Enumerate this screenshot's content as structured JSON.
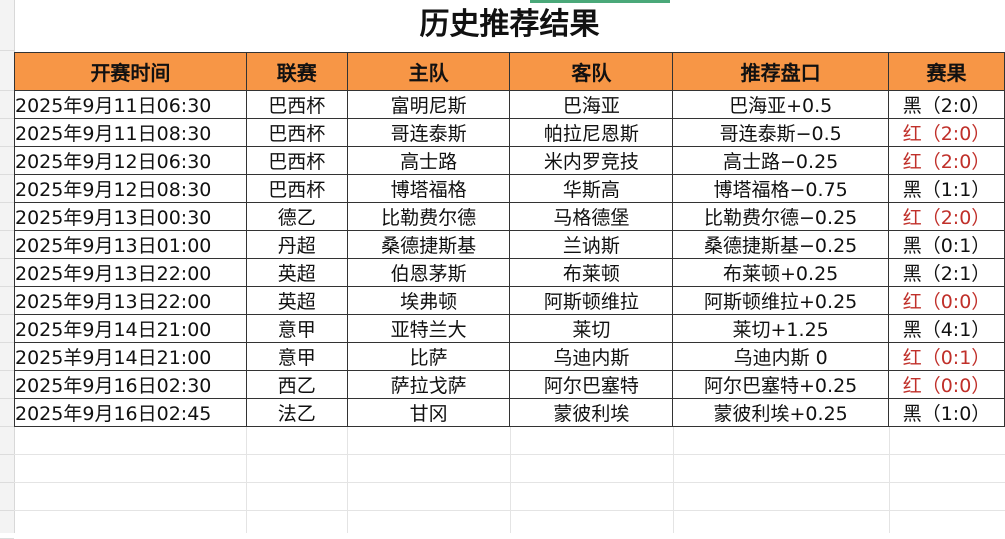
{
  "title": "历史推荐结果",
  "colors": {
    "header_bg": "#f79646",
    "win": "#c0302a",
    "loss": "#111111"
  },
  "columns": [
    "开赛时间",
    "联赛",
    "主队",
    "客队",
    "推荐盘口",
    "赛果"
  ],
  "rows": [
    {
      "time": "2025年9月11日06:30",
      "league": "巴西杯",
      "home": "富明尼斯",
      "away": "巴海亚",
      "pick": "巴海亚+0.5",
      "result": "黑（2:0）",
      "win": false
    },
    {
      "time": "2025年9月11日08:30",
      "league": "巴西杯",
      "home": "哥连泰斯",
      "away": "帕拉尼恩斯",
      "pick": "哥连泰斯−0.5",
      "result": "红（2:0）",
      "win": true
    },
    {
      "time": "2025年9月12日06:30",
      "league": "巴西杯",
      "home": "高士路",
      "away": "米内罗竞技",
      "pick": "高士路−0.25",
      "result": "红（2:0）",
      "win": true
    },
    {
      "time": "2025年9月12日08:30",
      "league": "巴西杯",
      "home": "博塔福格",
      "away": "华斯高",
      "pick": "博塔福格−0.75",
      "result": "黑（1:1）",
      "win": false
    },
    {
      "time": "2025年9月13日00:30",
      "league": "德乙",
      "home": "比勒费尔德",
      "away": "马格德堡",
      "pick": "比勒费尔德−0.25",
      "result": "红（2:0）",
      "win": true
    },
    {
      "time": "2025年9月13日01:00",
      "league": "丹超",
      "home": "桑德捷斯基",
      "away": "兰讷斯",
      "pick": "桑德捷斯基−0.25",
      "result": "黑（0:1）",
      "win": false
    },
    {
      "time": "2025年9月13日22:00",
      "league": "英超",
      "home": "伯恩茅斯",
      "away": "布莱顿",
      "pick": "布莱顿+0.25",
      "result": "黑（2:1）",
      "win": false
    },
    {
      "time": "2025年9月13日22:00",
      "league": "英超",
      "home": "埃弗顿",
      "away": "阿斯顿维拉",
      "pick": "阿斯顿维拉+0.25",
      "result": "红（0:0）",
      "win": true
    },
    {
      "time": "2025年9月14日21:00",
      "league": "意甲",
      "home": "亚特兰大",
      "away": "莱切",
      "pick": "莱切+1.25",
      "result": "黑（4:1）",
      "win": false
    },
    {
      "time": "2025羊9月14日21:00",
      "league": "意甲",
      "home": "比萨",
      "away": "乌迪内斯",
      "pick": "乌迪内斯 0",
      "result": "红（0:1）",
      "win": true
    },
    {
      "time": "2025年9月16日02:30",
      "league": "西乙",
      "home": "萨拉戈萨",
      "away": "阿尔巴塞特",
      "pick": "阿尔巴塞特+0.25",
      "result": "红（0:0）",
      "win": true
    },
    {
      "time": "2025年9月16日02:45",
      "league": "法乙",
      "home": "甘冈",
      "away": "蒙彼利埃",
      "pick": "蒙彼利埃+0.25",
      "result": "黑（1:0）",
      "win": false
    }
  ]
}
